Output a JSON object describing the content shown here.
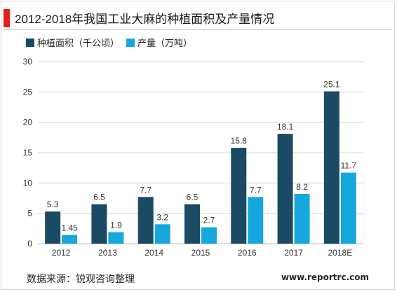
{
  "title": "2012-2018年我国工业大麻的种植面积及产量情况",
  "source": "数据来源：锐观咨询整理",
  "website": "www.reportrc.com",
  "colors": {
    "accent": "#e02020",
    "series1": "#1b4a64",
    "series2": "#16a8dc"
  },
  "chart_data": {
    "type": "bar",
    "title": "2012-2018年我国工业大麻的种植面积及产量情况",
    "categories": [
      "2012",
      "2013",
      "2014",
      "2015",
      "2016",
      "2017",
      "2018E"
    ],
    "series": [
      {
        "name": "种植面积（千公顷）",
        "values": [
          5.3,
          6.5,
          7.7,
          6.5,
          15.8,
          18.1,
          25.1
        ],
        "labels": [
          "5.3",
          "6.5",
          "7.7",
          "6.5",
          "15.8",
          "18.1",
          "25.1"
        ]
      },
      {
        "name": "产量（万吨）",
        "values": [
          1.45,
          1.9,
          3.2,
          2.7,
          7.7,
          8.2,
          11.7
        ],
        "labels": [
          "1.45",
          "1.9",
          "3.2",
          "2.7",
          "7.7",
          "8.2",
          "11.7"
        ]
      }
    ],
    "ylim": [
      0,
      30
    ],
    "yticks": [
      0,
      5,
      10,
      15,
      20,
      25,
      30
    ],
    "grid": true,
    "legend": "top-left"
  }
}
